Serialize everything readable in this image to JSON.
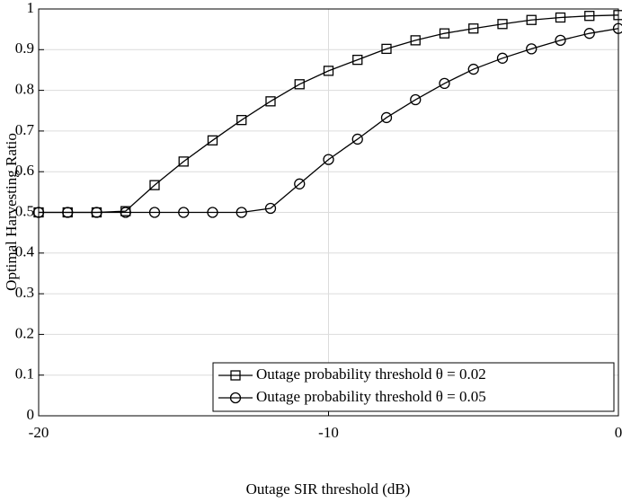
{
  "chart_data": {
    "type": "line",
    "x": [
      -20,
      -19,
      -18,
      -17,
      -16,
      -15,
      -14,
      -13,
      -12,
      -11,
      -10,
      -9,
      -8,
      -7,
      -6,
      -5,
      -4,
      -3,
      -2,
      -1,
      0
    ],
    "series": [
      {
        "name": "Outage probability threshold θ = 0.02",
        "color": "#000000",
        "marker": "square",
        "values": [
          0.5,
          0.5,
          0.5,
          0.503,
          0.567,
          0.625,
          0.677,
          0.727,
          0.773,
          0.815,
          0.848,
          0.875,
          0.902,
          0.923,
          0.94,
          0.952,
          0.963,
          0.973,
          0.979,
          0.983,
          0.985
        ]
      },
      {
        "name": "Outage probability threshold θ = 0.05",
        "color": "#000000",
        "marker": "circle",
        "values": [
          0.5,
          0.5,
          0.5,
          0.5,
          0.5,
          0.5,
          0.5,
          0.5,
          0.51,
          0.57,
          0.63,
          0.68,
          0.733,
          0.777,
          0.817,
          0.852,
          0.879,
          0.902,
          0.923,
          0.94,
          0.952
        ]
      }
    ],
    "xlabel": "Outage SIR threshold (dB)",
    "ylabel": "Optimal Harvesting Ratio",
    "xlim": [
      -20,
      0
    ],
    "xticks": [
      -20,
      -10,
      0
    ],
    "ylim": [
      0,
      1
    ],
    "yticks": [
      0,
      0.1,
      0.2,
      0.3,
      0.4,
      0.5,
      0.6,
      0.7,
      0.8,
      0.9,
      1
    ],
    "grid": true,
    "legend": "lower right"
  }
}
